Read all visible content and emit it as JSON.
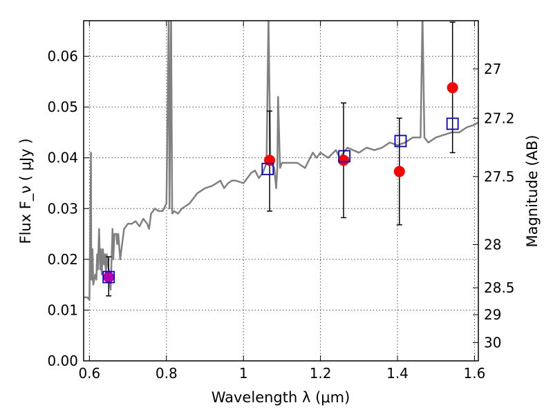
{
  "chart_data": {
    "type": "scatter",
    "xlabel": "Wavelength  λ (μm)",
    "ylabel": "Flux  F_ν  ( μJy )",
    "ylabel_right": "Magnitude (AB)",
    "xlim": [
      0.585,
      1.61
    ],
    "ylim": [
      0.0,
      0.067
    ],
    "grid": true,
    "x_ticks": [
      0.6,
      0.8,
      1.0,
      1.2,
      1.4,
      1.6
    ],
    "x_tick_labels": [
      "0.6",
      "0.8",
      "1",
      "1.2",
      "1.4",
      "1.6"
    ],
    "y_ticks": [
      0.0,
      0.01,
      0.02,
      0.03,
      0.04,
      0.05,
      0.06
    ],
    "y_tick_labels": [
      "0.00",
      "0.01",
      "0.02",
      "0.03",
      "0.04",
      "0.05",
      "0.06"
    ],
    "magnitude_ticks": [
      {
        "label": "27",
        "flux": 0.0575
      },
      {
        "label": "27.2",
        "flux": 0.0478
      },
      {
        "label": "27.5",
        "flux": 0.0363
      },
      {
        "label": "28",
        "flux": 0.0229
      },
      {
        "label": "28.5",
        "flux": 0.0144
      },
      {
        "label": "29",
        "flux": 0.0091
      },
      {
        "label": "30",
        "flux": 0.0036
      }
    ],
    "series": [
      {
        "kind": "line",
        "color": "#808080",
        "x": [
          0.585,
          0.595,
          0.6,
          0.604,
          0.605,
          0.607,
          0.608,
          0.61,
          0.615,
          0.618,
          0.62,
          0.622,
          0.625,
          0.628,
          0.63,
          0.632,
          0.635,
          0.638,
          0.64,
          0.643,
          0.645,
          0.648,
          0.65,
          0.655,
          0.66,
          0.662,
          0.665,
          0.67,
          0.672,
          0.675,
          0.68,
          0.69,
          0.7,
          0.71,
          0.72,
          0.73,
          0.74,
          0.75,
          0.755,
          0.76,
          0.77,
          0.78,
          0.79,
          0.8,
          0.806,
          0.808,
          0.812,
          0.815,
          0.82,
          0.83,
          0.84,
          0.85,
          0.86,
          0.87,
          0.88,
          0.9,
          0.92,
          0.94,
          0.95,
          0.96,
          0.97,
          0.98,
          1.0,
          1.02,
          1.03,
          1.04,
          1.05,
          1.06,
          1.065,
          1.07,
          1.08,
          1.085,
          1.088,
          1.09,
          1.095,
          1.1,
          1.12,
          1.14,
          1.16,
          1.18,
          1.19,
          1.2,
          1.22,
          1.24,
          1.25,
          1.27,
          1.3,
          1.32,
          1.34,
          1.36,
          1.38,
          1.4,
          1.42,
          1.44,
          1.46,
          1.465,
          1.47,
          1.48,
          1.5,
          1.52,
          1.54,
          1.56,
          1.58,
          1.6,
          1.61
        ],
        "y": [
          0.0125,
          0.0125,
          0.012,
          0.041,
          0.016,
          0.016,
          0.022,
          0.015,
          0.017,
          0.016,
          0.021,
          0.018,
          0.026,
          0.018,
          0.022,
          0.017,
          0.022,
          0.019,
          0.021,
          0.017,
          0.021,
          0.019,
          0.018,
          0.014,
          0.026,
          0.02,
          0.025,
          0.025,
          0.023,
          0.025,
          0.02,
          0.026,
          0.027,
          0.027,
          0.0275,
          0.0265,
          0.028,
          0.027,
          0.026,
          0.029,
          0.03,
          0.0295,
          0.0295,
          0.031,
          0.068,
          0.03,
          0.068,
          0.029,
          0.0295,
          0.029,
          0.03,
          0.0305,
          0.031,
          0.032,
          0.033,
          0.034,
          0.0345,
          0.0355,
          0.034,
          0.035,
          0.0355,
          0.0355,
          0.035,
          0.037,
          0.0375,
          0.036,
          0.037,
          0.039,
          0.068,
          0.039,
          0.038,
          0.034,
          0.038,
          0.052,
          0.038,
          0.039,
          0.039,
          0.039,
          0.038,
          0.041,
          0.04,
          0.041,
          0.04,
          0.0415,
          0.04,
          0.042,
          0.041,
          0.042,
          0.0415,
          0.042,
          0.043,
          0.0425,
          0.043,
          0.044,
          0.044,
          0.068,
          0.044,
          0.043,
          0.044,
          0.0445,
          0.045,
          0.045,
          0.046,
          0.0465,
          0.047
        ]
      },
      {
        "kind": "open-square",
        "color": "#0000cc",
        "x": [
          0.65,
          1.063,
          1.262,
          1.408,
          1.543
        ],
        "y": [
          0.0165,
          0.0378,
          0.0403,
          0.0433,
          0.0467
        ]
      },
      {
        "kind": "filled-circle",
        "color": "#ff0000",
        "x": [
          1.068,
          1.26,
          1.405,
          1.543
        ],
        "y": [
          0.0395,
          0.0395,
          0.0373,
          0.0538
        ],
        "err_low": [
          0.0295,
          0.0282,
          0.0268,
          0.041
        ],
        "err_high": [
          0.0492,
          0.0508,
          0.0478,
          0.0667
        ]
      },
      {
        "kind": "filled-circle",
        "color": "#b300b3",
        "x": [
          0.65
        ],
        "y": [
          0.0165
        ],
        "err_low": [
          0.0128
        ],
        "err_high": [
          0.0205
        ]
      }
    ]
  }
}
